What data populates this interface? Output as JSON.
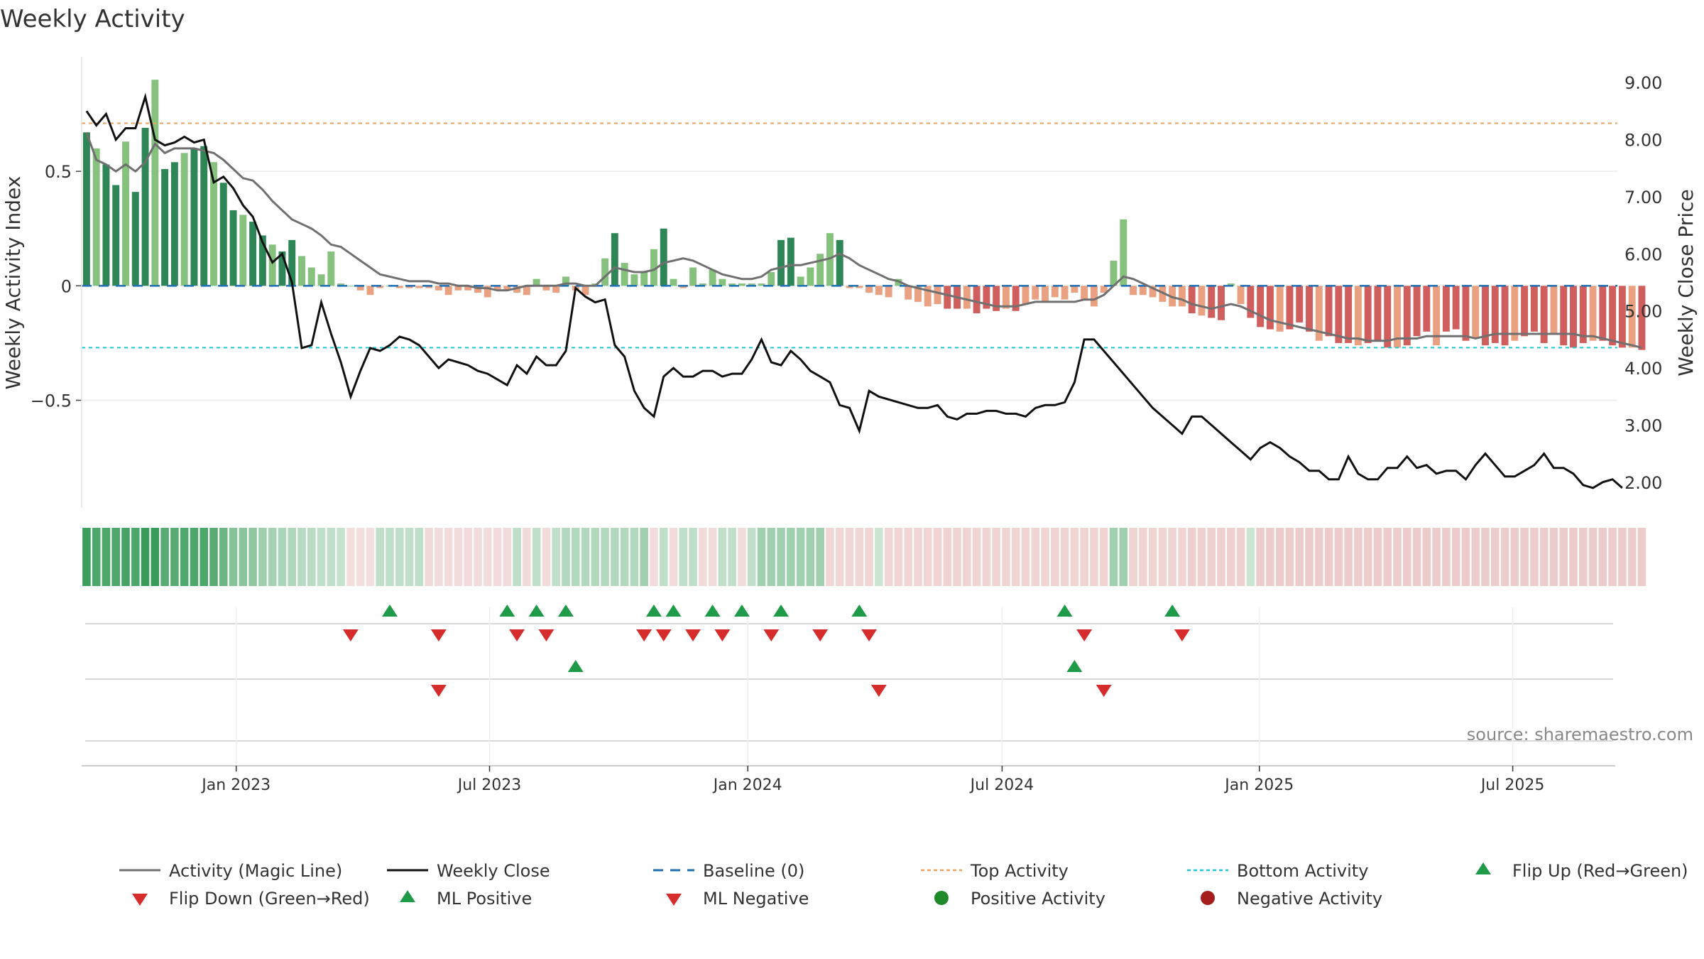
{
  "colors": {
    "pos_strong": "#2e8555",
    "pos_light": "#86c17e",
    "neg_strong": "#cf5e5c",
    "neg_light": "#e9a181",
    "magic_line": "#707070",
    "close_line": "#111111",
    "baseline": "#1f6fb4",
    "top_line": "#e8a25f",
    "bottom_line": "#1ec8d2",
    "marker_up": "#1f9a48",
    "marker_down": "#d62c2c",
    "dot_pos": "#1f8a2a",
    "dot_neg": "#a51d1d"
  },
  "chart_data": {
    "type": "bar",
    "title": "Weekly Activity",
    "ylabel_left": "Weekly Activity Index",
    "ylabel_right": "Weekly Close Price",
    "source": "source: sharemaestro.com",
    "ylim_left": [
      -0.97,
      1.0
    ],
    "ylim_right": [
      1.55,
      9.45
    ],
    "yticks_left": [
      {
        "v": 0.5,
        "label": "0.5"
      },
      {
        "v": 0,
        "label": "0"
      },
      {
        "v": -0.5,
        "label": "−0.5"
      }
    ],
    "yticks_right": [
      {
        "v": 9,
        "label": "9.00"
      },
      {
        "v": 8,
        "label": "8.00"
      },
      {
        "v": 7,
        "label": "7.00"
      },
      {
        "v": 6,
        "label": "6.00"
      },
      {
        "v": 5,
        "label": "5.00"
      },
      {
        "v": 4,
        "label": "4.00"
      },
      {
        "v": 3,
        "label": "3.00"
      },
      {
        "v": 2,
        "label": "2.00"
      }
    ],
    "top_activity": 0.71,
    "bottom_activity": -0.27,
    "x_range_weeks": [
      0,
      157
    ],
    "xticks": [
      {
        "w": 15.3,
        "label": "Jan 2023"
      },
      {
        "w": 41.2,
        "label": "Jul 2023"
      },
      {
        "w": 67.6,
        "label": "Jan 2024"
      },
      {
        "w": 93.6,
        "label": "Jul 2024"
      },
      {
        "w": 119.9,
        "label": "Jan 2025"
      },
      {
        "w": 145.8,
        "label": "Jul 2025"
      }
    ],
    "activity": [
      0.67,
      0.6,
      0.53,
      0.44,
      0.63,
      0.41,
      0.69,
      0.9,
      0.51,
      0.54,
      0.58,
      0.6,
      0.61,
      0.54,
      0.45,
      0.33,
      0.31,
      0.28,
      0.22,
      0.18,
      0.15,
      0.2,
      0.13,
      0.08,
      0.05,
      0.15,
      0.01,
      0.0,
      -0.02,
      -0.04,
      -0.01,
      0.0,
      -0.01,
      -0.01,
      -0.01,
      -0.01,
      -0.02,
      -0.04,
      -0.02,
      -0.02,
      -0.03,
      -0.05,
      -0.02,
      -0.02,
      -0.03,
      -0.04,
      0.03,
      -0.02,
      -0.03,
      0.04,
      -0.02,
      -0.04,
      0.01,
      0.12,
      0.23,
      0.1,
      0.05,
      0.06,
      0.16,
      0.25,
      0.03,
      -0.01,
      0.08,
      0.01,
      0.07,
      0.03,
      0.01,
      0.01,
      0.01,
      0.01,
      0.06,
      0.2,
      0.21,
      0.04,
      0.08,
      0.14,
      0.23,
      0.2,
      -0.01,
      -0.01,
      -0.03,
      -0.04,
      -0.05,
      0.03,
      -0.06,
      -0.07,
      -0.09,
      -0.08,
      -0.1,
      -0.1,
      -0.1,
      -0.12,
      -0.1,
      -0.11,
      -0.1,
      -0.11,
      -0.08,
      -0.06,
      -0.07,
      -0.05,
      -0.06,
      -0.03,
      -0.06,
      -0.09,
      -0.03,
      0.11,
      0.29,
      -0.04,
      -0.04,
      -0.05,
      -0.07,
      -0.09,
      -0.09,
      -0.12,
      -0.13,
      -0.14,
      -0.15,
      0.01,
      -0.08,
      -0.14,
      -0.18,
      -0.19,
      -0.2,
      -0.19,
      -0.16,
      -0.2,
      -0.24,
      -0.22,
      -0.25,
      -0.25,
      -0.26,
      -0.25,
      -0.24,
      -0.27,
      -0.27,
      -0.26,
      -0.22,
      -0.2,
      -0.26,
      -0.2,
      -0.19,
      -0.24,
      -0.23,
      -0.26,
      -0.25,
      -0.26,
      -0.24,
      -0.22,
      -0.2,
      -0.25,
      -0.21,
      -0.26,
      -0.27,
      -0.25,
      -0.24,
      -0.24,
      -0.26,
      -0.27,
      -0.27,
      -0.28
    ],
    "magic_line": [
      0.67,
      0.55,
      0.53,
      0.5,
      0.53,
      0.5,
      0.54,
      0.62,
      0.58,
      0.6,
      0.6,
      0.6,
      0.59,
      0.58,
      0.55,
      0.51,
      0.47,
      0.46,
      0.42,
      0.37,
      0.33,
      0.29,
      0.27,
      0.25,
      0.22,
      0.18,
      0.17,
      0.14,
      0.11,
      0.08,
      0.05,
      0.04,
      0.03,
      0.02,
      0.02,
      0.02,
      0.01,
      0.01,
      0.0,
      0.0,
      -0.01,
      -0.01,
      -0.02,
      -0.02,
      -0.01,
      0.0,
      0.0,
      0.0,
      0.0,
      0.01,
      0.01,
      0.0,
      0.0,
      0.04,
      0.08,
      0.07,
      0.06,
      0.06,
      0.07,
      0.1,
      0.11,
      0.12,
      0.11,
      0.09,
      0.07,
      0.05,
      0.04,
      0.03,
      0.03,
      0.04,
      0.07,
      0.08,
      0.09,
      0.09,
      0.1,
      0.11,
      0.12,
      0.14,
      0.12,
      0.09,
      0.07,
      0.05,
      0.03,
      0.02,
      0.0,
      -0.01,
      -0.02,
      -0.03,
      -0.04,
      -0.05,
      -0.06,
      -0.07,
      -0.08,
      -0.09,
      -0.09,
      -0.09,
      -0.08,
      -0.07,
      -0.07,
      -0.07,
      -0.07,
      -0.07,
      -0.06,
      -0.06,
      -0.04,
      0.0,
      0.04,
      0.03,
      0.01,
      -0.01,
      -0.03,
      -0.05,
      -0.06,
      -0.08,
      -0.09,
      -0.1,
      -0.09,
      -0.08,
      -0.09,
      -0.11,
      -0.13,
      -0.15,
      -0.16,
      -0.17,
      -0.18,
      -0.19,
      -0.2,
      -0.21,
      -0.22,
      -0.23,
      -0.23,
      -0.24,
      -0.24,
      -0.24,
      -0.23,
      -0.23,
      -0.23,
      -0.22,
      -0.22,
      -0.22,
      -0.22,
      -0.22,
      -0.23,
      -0.22,
      -0.21,
      -0.21,
      -0.21,
      -0.21,
      -0.21,
      -0.21,
      -0.21,
      -0.21,
      -0.21,
      -0.22,
      -0.22,
      -0.23,
      -0.24,
      -0.25,
      -0.26,
      -0.27
    ],
    "weekly_close": [
      8.5,
      8.25,
      8.45,
      8.0,
      8.2,
      8.2,
      8.75,
      8.0,
      7.9,
      7.95,
      8.05,
      7.95,
      8.0,
      7.25,
      7.35,
      7.15,
      6.85,
      6.65,
      6.2,
      5.85,
      6.0,
      5.5,
      4.35,
      4.4,
      5.15,
      4.6,
      4.1,
      3.5,
      3.95,
      4.35,
      4.3,
      4.4,
      4.55,
      4.5,
      4.4,
      4.2,
      4.0,
      4.15,
      4.1,
      4.05,
      3.95,
      3.9,
      3.8,
      3.7,
      4.05,
      3.9,
      4.2,
      4.05,
      4.05,
      4.3,
      5.4,
      5.25,
      5.15,
      5.2,
      4.4,
      4.2,
      3.6,
      3.3,
      3.15,
      3.85,
      4.0,
      3.85,
      3.85,
      3.95,
      3.95,
      3.85,
      3.9,
      3.9,
      4.15,
      4.5,
      4.1,
      4.05,
      4.3,
      4.15,
      3.95,
      3.85,
      3.75,
      3.35,
      3.3,
      2.9,
      3.6,
      3.5,
      3.45,
      3.4,
      3.35,
      3.3,
      3.3,
      3.35,
      3.15,
      3.1,
      3.2,
      3.2,
      3.25,
      3.25,
      3.2,
      3.2,
      3.15,
      3.3,
      3.35,
      3.35,
      3.4,
      3.75,
      4.5,
      4.5,
      4.3,
      4.1,
      3.9,
      3.7,
      3.5,
      3.3,
      3.15,
      3.0,
      2.85,
      3.15,
      3.15,
      3.0,
      2.85,
      2.7,
      2.55,
      2.4,
      2.6,
      2.7,
      2.6,
      2.45,
      2.35,
      2.2,
      2.2,
      2.05,
      2.05,
      2.45,
      2.15,
      2.05,
      2.05,
      2.25,
      2.25,
      2.45,
      2.25,
      2.3,
      2.15,
      2.2,
      2.2,
      2.05,
      2.3,
      2.5,
      2.3,
      2.1,
      2.1,
      2.2,
      2.3,
      2.5,
      2.25,
      2.25,
      2.15,
      1.95,
      1.9,
      2.0,
      2.05,
      1.9
    ],
    "flip_up": [
      31,
      43,
      46,
      49,
      58,
      60,
      64,
      67,
      71,
      79,
      100,
      111
    ],
    "flip_down": [
      27,
      36,
      44,
      47,
      57,
      59,
      62,
      65,
      70,
      75,
      80,
      102,
      112
    ],
    "ml_positive": [
      50,
      101
    ],
    "ml_negative": [
      36,
      81,
      104
    ],
    "heat_strip": [
      0.67,
      0.6,
      0.6,
      0.6,
      0.63,
      0.6,
      0.69,
      0.9,
      0.55,
      0.55,
      0.58,
      0.6,
      0.61,
      0.54,
      0.45,
      0.33,
      0.31,
      0.28,
      0.22,
      0.18,
      0.15,
      0.13,
      0.1,
      0.08,
      0.05,
      0.05,
      0.02,
      -0.02,
      -0.02,
      -0.02,
      0.05,
      0.05,
      0.05,
      0.05,
      0.05,
      -0.05,
      -0.04,
      -0.04,
      -0.04,
      -0.04,
      -0.04,
      -0.04,
      -0.04,
      -0.04,
      0.05,
      -0.04,
      0.05,
      -0.04,
      0.05,
      0.12,
      0.12,
      0.12,
      0.12,
      0.12,
      0.12,
      0.12,
      0.12,
      0.2,
      -0.04,
      0.05,
      -0.04,
      0.05,
      0.05,
      -0.04,
      -0.04,
      0.05,
      0.05,
      -0.04,
      0.05,
      0.2,
      0.2,
      0.2,
      0.2,
      0.2,
      0.2,
      0.2,
      -0.08,
      -0.08,
      -0.08,
      -0.08,
      -0.08,
      0.0,
      -0.08,
      -0.09,
      -0.09,
      -0.09,
      -0.09,
      -0.09,
      -0.1,
      -0.1,
      -0.1,
      -0.1,
      -0.1,
      -0.1,
      -0.1,
      -0.1,
      -0.1,
      -0.1,
      -0.1,
      -0.1,
      -0.1,
      -0.1,
      -0.1,
      -0.1,
      -0.1,
      0.2,
      0.2,
      -0.1,
      -0.1,
      -0.1,
      -0.1,
      -0.1,
      -0.1,
      -0.12,
      -0.12,
      -0.12,
      -0.12,
      -0.12,
      -0.12,
      0.0,
      -0.15,
      -0.15,
      -0.15,
      -0.15,
      -0.15,
      -0.15,
      -0.15,
      -0.15,
      -0.15,
      -0.15,
      -0.15,
      -0.15,
      -0.15,
      -0.15,
      -0.15,
      -0.15,
      -0.15,
      -0.15,
      -0.15,
      -0.15,
      -0.15,
      -0.15,
      -0.15,
      -0.15,
      -0.15,
      -0.15,
      -0.15,
      -0.15,
      -0.15,
      -0.15,
      -0.15,
      -0.15,
      -0.15,
      -0.15,
      -0.15,
      -0.15,
      -0.15,
      -0.15,
      -0.15,
      -0.15
    ],
    "legend": [
      {
        "label": "Activity (Magic Line)",
        "kind": "line-gray"
      },
      {
        "label": "Weekly Close",
        "kind": "line-black"
      },
      {
        "label": "Baseline (0)",
        "kind": "dash-blue"
      },
      {
        "label": "Top Activity",
        "kind": "dot-orange"
      },
      {
        "label": "Bottom Activity",
        "kind": "dot-cyan"
      },
      {
        "label": "Flip Up (Red→Green)",
        "kind": "tri-up"
      },
      {
        "label": "Flip Down (Green→Red)",
        "kind": "tri-down"
      },
      {
        "label": "ML Positive",
        "kind": "tri-up"
      },
      {
        "label": "ML Negative",
        "kind": "tri-down"
      },
      {
        "label": "Positive Activity",
        "kind": "dot-green"
      },
      {
        "label": "Negative Activity",
        "kind": "dot-red"
      }
    ]
  }
}
